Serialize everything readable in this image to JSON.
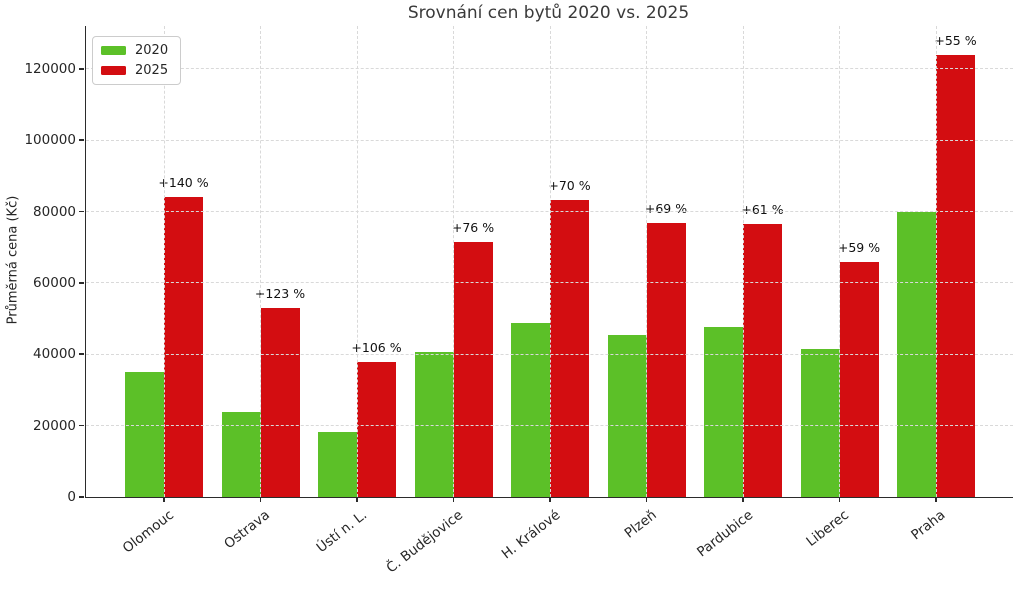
{
  "chart_data": {
    "type": "bar",
    "title": "Srovnání cen bytů 2020 vs. 2025",
    "xlabel": "",
    "ylabel": "Průměrná cena (Kč)",
    "categories": [
      "Olomouc",
      "Ostrava",
      "Ústí n. L.",
      "Č. Budějovice",
      "H. Králové",
      "Plzeň",
      "Pardubice",
      "Liberec",
      "Praha"
    ],
    "series": [
      {
        "name": "2020",
        "color": "#5cc028",
        "values": [
          35000,
          23700,
          18300,
          40700,
          48900,
          45500,
          47600,
          41400,
          80000
        ]
      },
      {
        "name": "2025",
        "color": "#d30d11",
        "values": [
          84000,
          52900,
          37700,
          71600,
          83100,
          76900,
          76600,
          65800,
          124000
        ]
      }
    ],
    "annotations": [
      "+140 %",
      "+123 %",
      "+106 %",
      "+76 %",
      "+70 %",
      "+69 %",
      "+61 %",
      "+59 %",
      "+55 %"
    ],
    "yticks": [
      0,
      20000,
      40000,
      60000,
      80000,
      100000,
      120000
    ],
    "ylim": [
      0,
      132000
    ],
    "grid": true,
    "grid_style": "dashed",
    "legend_position": "upper left",
    "legend_entries": [
      "2020",
      "2025"
    ],
    "colors": {
      "bar_2020": "#5cc028",
      "bar_2025": "#d30d11",
      "grid": "#d9d9d9",
      "spine": "#2b2b2b",
      "background": "#ffffff"
    }
  }
}
